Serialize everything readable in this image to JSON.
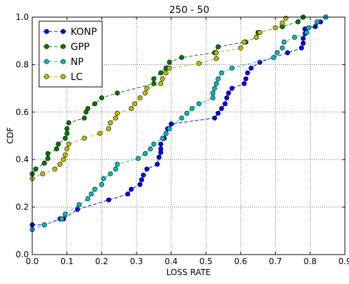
{
  "chart_data": {
    "type": "line",
    "title": "250 - 50",
    "xlabel": "LOSS RATE",
    "ylabel": "CDF",
    "xlim": [
      0,
      0.9
    ],
    "ylim": [
      0,
      1.0
    ],
    "grid": true,
    "legend_position": "top-left",
    "x_ticks": [
      "0.0",
      "0.1",
      "0.2",
      "0.3",
      "0.4",
      "0.5",
      "0.6",
      "0.7",
      "0.8",
      "0.9"
    ],
    "y_ticks": [
      "0.0",
      "0.2",
      "0.4",
      "0.6",
      "0.8",
      "1.0"
    ],
    "series": [
      {
        "name": "KONP",
        "color": "#0000ff",
        "points": [
          [
            0.0,
            0.125
          ],
          [
            0.035,
            0.125
          ],
          [
            0.08,
            0.15
          ],
          [
            0.09,
            0.15
          ],
          [
            0.13,
            0.19
          ],
          [
            0.22,
            0.23
          ],
          [
            0.275,
            0.255
          ],
          [
            0.285,
            0.275
          ],
          [
            0.31,
            0.295
          ],
          [
            0.315,
            0.315
          ],
          [
            0.32,
            0.335
          ],
          [
            0.33,
            0.36
          ],
          [
            0.36,
            0.38
          ],
          [
            0.365,
            0.41
          ],
          [
            0.37,
            0.43
          ],
          [
            0.37,
            0.445
          ],
          [
            0.37,
            0.465
          ],
          [
            0.38,
            0.49
          ],
          [
            0.385,
            0.51
          ],
          [
            0.39,
            0.53
          ],
          [
            0.4,
            0.55
          ],
          [
            0.525,
            0.575
          ],
          [
            0.535,
            0.595
          ],
          [
            0.545,
            0.615
          ],
          [
            0.555,
            0.635
          ],
          [
            0.56,
            0.66
          ],
          [
            0.565,
            0.68
          ],
          [
            0.575,
            0.7
          ],
          [
            0.61,
            0.72
          ],
          [
            0.615,
            0.74
          ],
          [
            0.62,
            0.765
          ],
          [
            0.63,
            0.785
          ],
          [
            0.655,
            0.81
          ],
          [
            0.695,
            0.83
          ],
          [
            0.735,
            0.85
          ],
          [
            0.775,
            0.87
          ],
          [
            0.78,
            0.89
          ],
          [
            0.78,
            0.91
          ],
          [
            0.785,
            0.93
          ],
          [
            0.785,
            0.95
          ],
          [
            0.815,
            0.96
          ],
          [
            0.83,
            0.98
          ],
          [
            0.845,
            1.0
          ]
        ]
      },
      {
        "name": "GPP",
        "color": "#007700",
        "points": [
          [
            0.0,
            0.34
          ],
          [
            0.01,
            0.36
          ],
          [
            0.035,
            0.385
          ],
          [
            0.045,
            0.405
          ],
          [
            0.045,
            0.425
          ],
          [
            0.07,
            0.445
          ],
          [
            0.075,
            0.465
          ],
          [
            0.095,
            0.49
          ],
          [
            0.1,
            0.51
          ],
          [
            0.1,
            0.53
          ],
          [
            0.105,
            0.555
          ],
          [
            0.15,
            0.575
          ],
          [
            0.155,
            0.6
          ],
          [
            0.16,
            0.615
          ],
          [
            0.18,
            0.635
          ],
          [
            0.2,
            0.66
          ],
          [
            0.245,
            0.68
          ],
          [
            0.35,
            0.72
          ],
          [
            0.35,
            0.74
          ],
          [
            0.37,
            0.765
          ],
          [
            0.385,
            0.785
          ],
          [
            0.395,
            0.81
          ],
          [
            0.43,
            0.83
          ],
          [
            0.525,
            0.85
          ],
          [
            0.535,
            0.875
          ],
          [
            0.615,
            0.895
          ],
          [
            0.645,
            0.915
          ],
          [
            0.65,
            0.935
          ],
          [
            0.72,
            0.96
          ],
          [
            0.765,
            0.98
          ],
          [
            0.78,
            1.0
          ]
        ]
      },
      {
        "name": "NP",
        "color": "#00bbbb",
        "points": [
          [
            0.0,
            0.105
          ],
          [
            0.035,
            0.125
          ],
          [
            0.085,
            0.15
          ],
          [
            0.095,
            0.17
          ],
          [
            0.135,
            0.21
          ],
          [
            0.16,
            0.235
          ],
          [
            0.17,
            0.255
          ],
          [
            0.18,
            0.275
          ],
          [
            0.2,
            0.295
          ],
          [
            0.205,
            0.32
          ],
          [
            0.225,
            0.34
          ],
          [
            0.24,
            0.36
          ],
          [
            0.245,
            0.38
          ],
          [
            0.305,
            0.405
          ],
          [
            0.325,
            0.425
          ],
          [
            0.34,
            0.445
          ],
          [
            0.35,
            0.465
          ],
          [
            0.375,
            0.49
          ],
          [
            0.385,
            0.51
          ],
          [
            0.395,
            0.53
          ],
          [
            0.43,
            0.575
          ],
          [
            0.445,
            0.595
          ],
          [
            0.46,
            0.615
          ],
          [
            0.48,
            0.635
          ],
          [
            0.52,
            0.66
          ],
          [
            0.52,
            0.68
          ],
          [
            0.525,
            0.7
          ],
          [
            0.53,
            0.72
          ],
          [
            0.535,
            0.74
          ],
          [
            0.545,
            0.765
          ],
          [
            0.575,
            0.785
          ],
          [
            0.695,
            0.83
          ],
          [
            0.705,
            0.85
          ],
          [
            0.72,
            0.87
          ],
          [
            0.725,
            0.895
          ],
          [
            0.755,
            0.915
          ],
          [
            0.79,
            0.935
          ],
          [
            0.795,
            0.955
          ],
          [
            0.82,
            0.98
          ],
          [
            0.845,
            1.0
          ]
        ]
      },
      {
        "name": "LC",
        "color": "#bbbb00",
        "points": [
          [
            0.0,
            0.32
          ],
          [
            0.03,
            0.34
          ],
          [
            0.065,
            0.36
          ],
          [
            0.08,
            0.38
          ],
          [
            0.09,
            0.4
          ],
          [
            0.095,
            0.42
          ],
          [
            0.1,
            0.445
          ],
          [
            0.105,
            0.465
          ],
          [
            0.15,
            0.49
          ],
          [
            0.195,
            0.51
          ],
          [
            0.22,
            0.53
          ],
          [
            0.225,
            0.555
          ],
          [
            0.24,
            0.575
          ],
          [
            0.245,
            0.595
          ],
          [
            0.285,
            0.615
          ],
          [
            0.295,
            0.635
          ],
          [
            0.31,
            0.66
          ],
          [
            0.325,
            0.68
          ],
          [
            0.33,
            0.7
          ],
          [
            0.37,
            0.72
          ],
          [
            0.375,
            0.74
          ],
          [
            0.385,
            0.765
          ],
          [
            0.395,
            0.785
          ],
          [
            0.48,
            0.805
          ],
          [
            0.53,
            0.825
          ],
          [
            0.53,
            0.85
          ],
          [
            0.6,
            0.87
          ],
          [
            0.61,
            0.895
          ],
          [
            0.645,
            0.915
          ],
          [
            0.655,
            0.935
          ],
          [
            0.7,
            0.955
          ],
          [
            0.72,
            0.975
          ],
          [
            0.73,
            0.995
          ]
        ]
      }
    ]
  }
}
